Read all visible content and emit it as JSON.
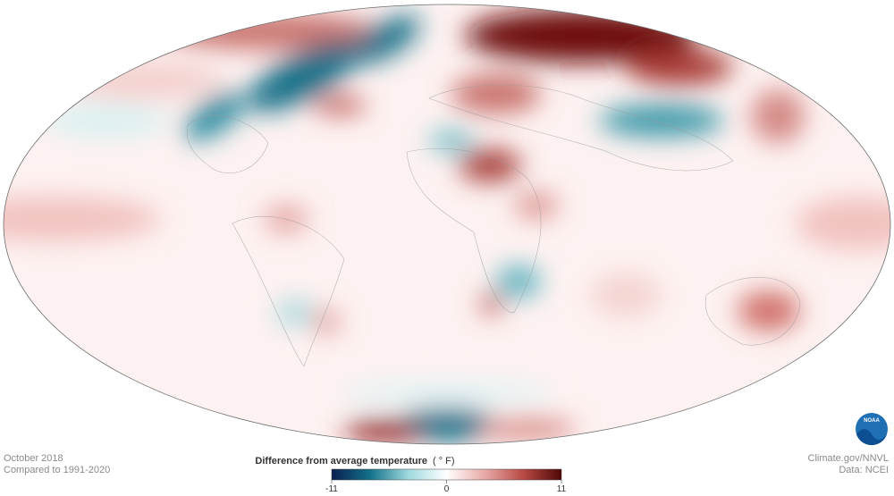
{
  "footer_left": {
    "date": "October 2018",
    "baseline": "Compared to 1991-2020"
  },
  "footer_right": {
    "credit": "Climate.gov/NNVL",
    "source": "Data: NCEI"
  },
  "logo": "NOAA",
  "legend": {
    "title": "Difference from average temperature",
    "unit": "( ° F)",
    "lim": [
      -11,
      11
    ],
    "ticks": [
      -11,
      0,
      11
    ],
    "colors": [
      "#0b1f4f",
      "#127189",
      "#9fd9de",
      "#ffffff",
      "#e7a9a6",
      "#b84a45",
      "#4f0707"
    ]
  }
}
